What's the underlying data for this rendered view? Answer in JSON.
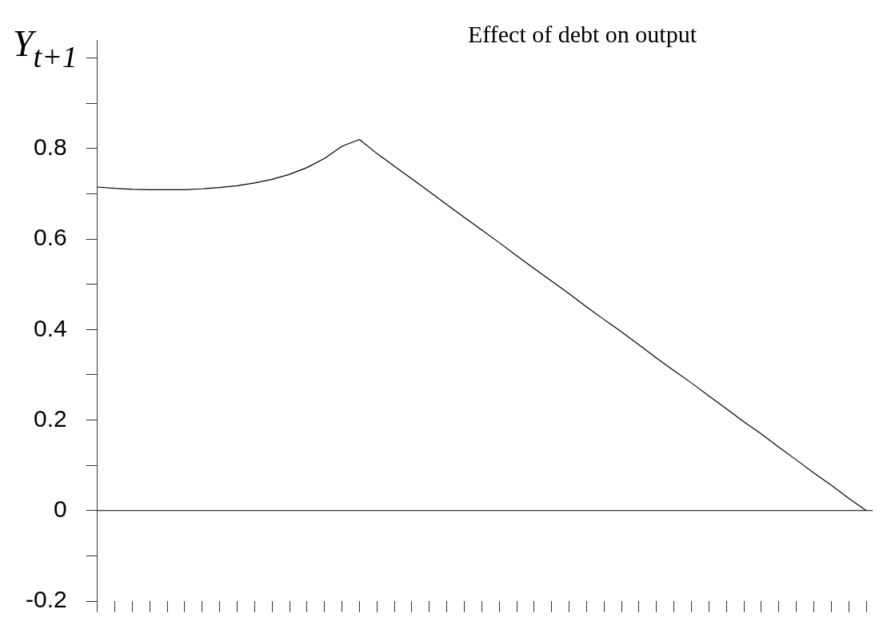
{
  "chart_data": {
    "type": "line",
    "title": "Effect of debt on output",
    "ylabel": "Y$_{t+1}$",
    "categories": [
      null,
      null,
      null,
      null,
      null,
      null,
      null,
      null,
      null,
      null,
      null,
      null,
      null,
      null,
      null,
      null,
      null,
      null,
      null,
      null,
      null,
      null,
      null,
      null,
      null,
      null,
      null,
      null,
      null,
      null,
      null,
      null,
      null,
      null,
      null,
      null,
      null,
      null,
      null,
      null,
      null,
      null,
      null,
      null,
      null
    ],
    "series": [
      {
        "color": "#000000",
        "values": [
          0.715,
          0.712,
          0.71,
          0.709,
          0.709,
          0.709,
          0.711,
          0.714,
          0.718,
          0.724,
          0.732,
          0.743,
          0.758,
          0.778,
          0.805,
          0.82,
          0.789,
          0.761,
          0.733,
          0.705,
          0.676,
          0.648,
          0.62,
          0.592,
          0.563,
          0.535,
          0.507,
          0.479,
          0.45,
          0.422,
          0.395,
          0.366,
          0.337,
          0.309,
          0.282,
          0.253,
          0.225,
          0.196,
          0.169,
          0.14,
          0.112,
          0.083,
          0.056,
          0.027,
          0
        ]
      }
    ],
    "ylim": [
      -0.2,
      1.04
    ],
    "yticks": [
      -0.2,
      {
        "value": -0.1,
        "label": null
      },
      0,
      {
        "value": 0.1,
        "label": null
      },
      0.2,
      {
        "value": 0.3,
        "label": null
      },
      0.4,
      {
        "value": 0.5,
        "label": null
      },
      0.6,
      {
        "value": 0.7,
        "label": null
      },
      0.8,
      {
        "value": 0.9,
        "label": null
      },
      {
        "value": 1.0,
        "label": null
      }
    ],
    "ref_lines": [
      {
        "axis": "y",
        "value": 0,
        "color": "#000000"
      }
    ],
    "tick_labels": "y",
    "grid": false,
    "legend": false,
    "marker": "none",
    "line_style": "solid"
  }
}
